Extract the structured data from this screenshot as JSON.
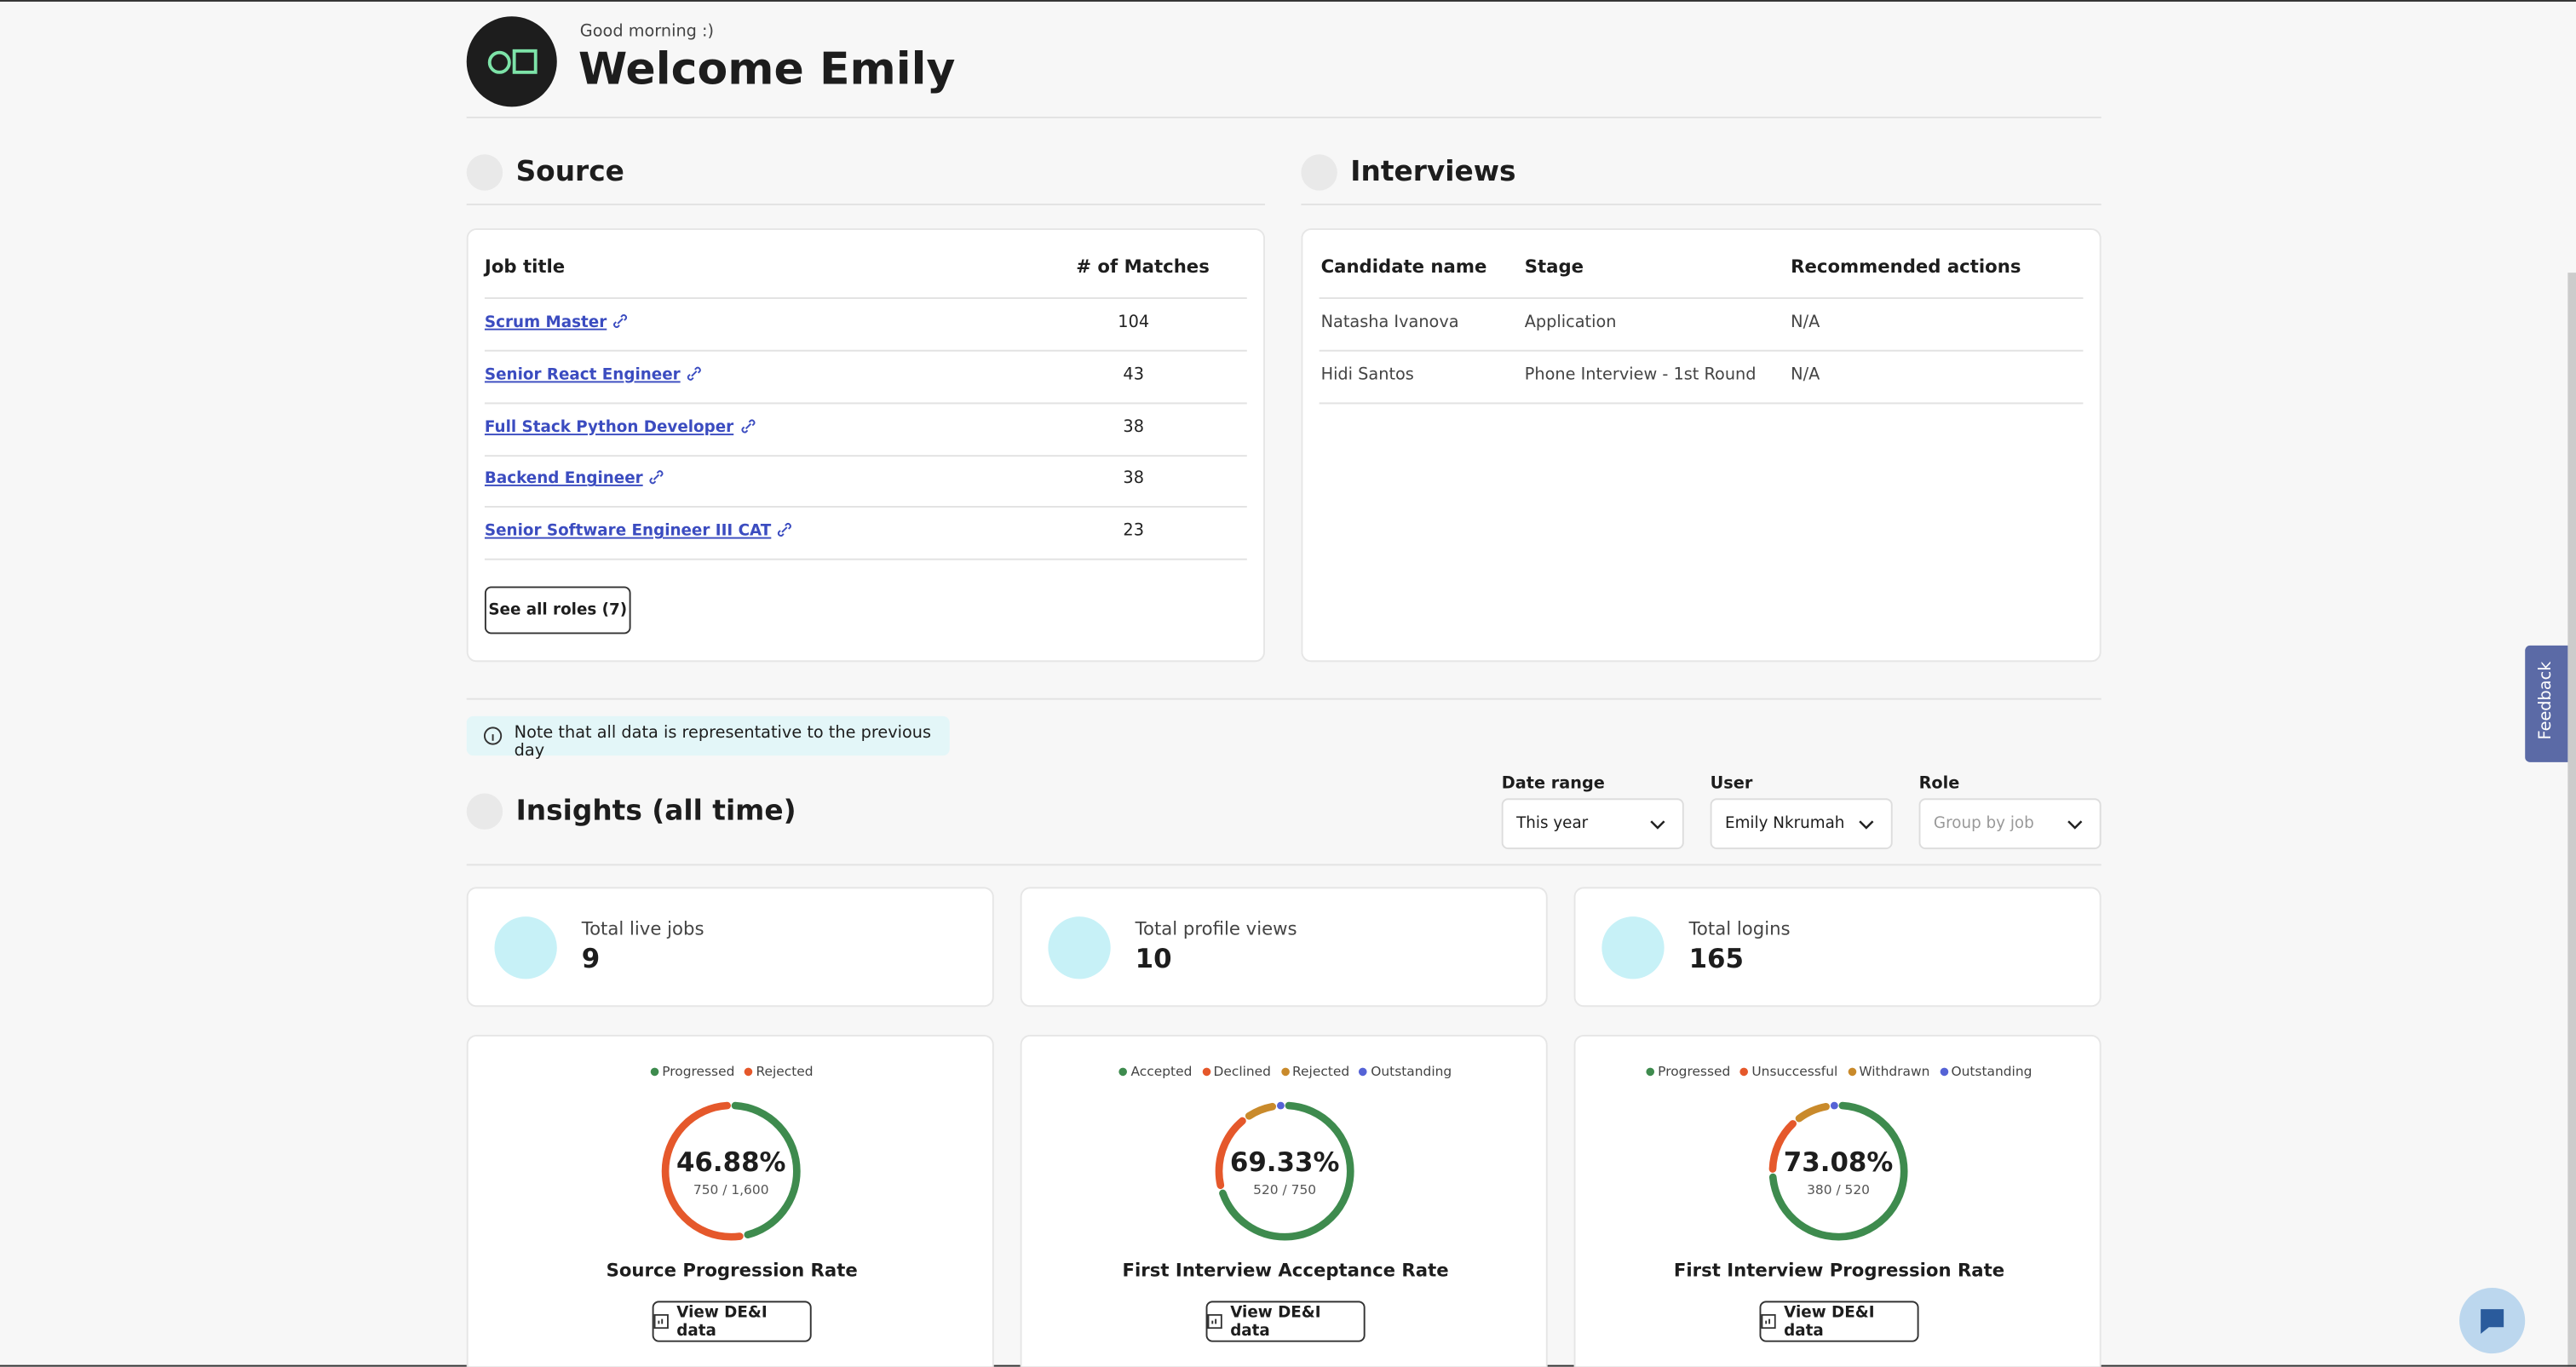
{
  "header": {
    "greeting": "Good morning :)",
    "title": "Welcome Emily"
  },
  "source": {
    "title": "Source",
    "columns": [
      "Job title",
      "# of Matches"
    ],
    "rows": [
      [
        "Scrum Master",
        104
      ],
      [
        "Senior React Engineer",
        43
      ],
      [
        "Full Stack Python Developer",
        38
      ],
      [
        "Backend Engineer",
        38
      ],
      [
        "Senior Software Engineer III CAT",
        23
      ]
    ],
    "button": "See all roles (7)"
  },
  "interviews": {
    "title": "Interviews",
    "columns": [
      "Candidate name",
      "Stage",
      "Recommended actions"
    ],
    "rows": [
      [
        "Natasha Ivanova",
        "Application",
        "N/A"
      ],
      [
        "Hidi Santos",
        "Phone Interview - 1st Round",
        "N/A"
      ]
    ]
  },
  "note": "Note that all data is representative to the previous day",
  "insights": {
    "title": "Insights (all time)",
    "filters": [
      {
        "label": "Date range",
        "value": "This year"
      },
      {
        "label": "User",
        "value": "Emily Nkrumah"
      },
      {
        "label": "Role",
        "value": "Group by job"
      }
    ],
    "stats": [
      {
        "label": "Total live jobs",
        "value": 9
      },
      {
        "label": "Total profile views",
        "value": 10
      },
      {
        "label": "Total logins",
        "value": 165
      }
    ],
    "cards": [
      {
        "title": "Source Progression Rate",
        "center": "46.88%",
        "detail": "750 / 1,600",
        "button": "View DE&I data",
        "series": [
          {
            "name": "Progressed",
            "color": "#3e8b4e",
            "value": 46.88
          },
          {
            "name": "Rejected",
            "color": "#e5582b",
            "value": 53.12
          }
        ]
      },
      {
        "title": "First Interview Acceptance Rate",
        "center": "69.33%",
        "detail": "520 / 750",
        "button": "View DE&I data",
        "series": [
          {
            "name": "Accepted",
            "color": "#3e8b4e",
            "value": 69.33
          },
          {
            "name": "Declined",
            "color": "#e5582b",
            "value": 19
          },
          {
            "name": "Rejected",
            "color": "#c98a2b",
            "value": 8
          },
          {
            "name": "Outstanding",
            "color": "#5563d6",
            "value": 2
          }
        ]
      },
      {
        "title": "First Interview Progression Rate",
        "center": "73.08%",
        "detail": "380 / 520",
        "button": "View DE&I data",
        "series": [
          {
            "name": "Progressed",
            "color": "#3e8b4e",
            "value": 73.08
          },
          {
            "name": "Unsuccessful",
            "color": "#e5582b",
            "value": 14
          },
          {
            "name": "Withdrawn",
            "color": "#c98a2b",
            "value": 9
          },
          {
            "name": "Outstanding",
            "color": "#5563d6",
            "value": 2
          }
        ]
      }
    ]
  },
  "feedback": "Feedback"
}
